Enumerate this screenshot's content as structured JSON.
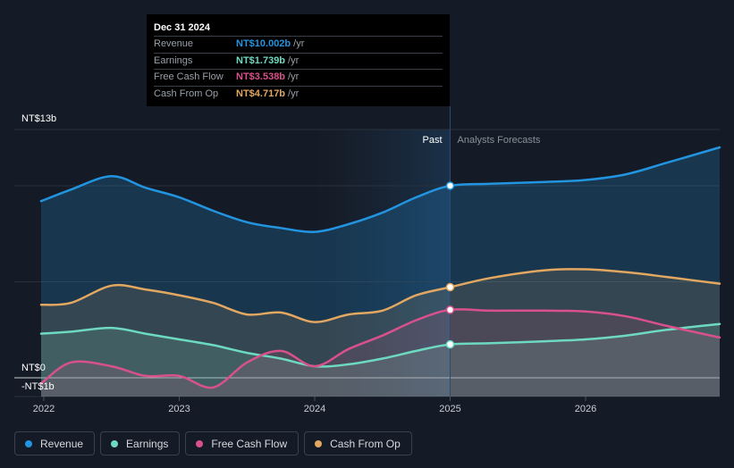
{
  "chart_data": {
    "type": "area",
    "y_axis_labels": [
      "NT$13b",
      "NT$0",
      "-NT$1b"
    ],
    "x_ticks": [
      "2022",
      "2023",
      "2024",
      "2025",
      "2026"
    ],
    "ylim": [
      -1,
      13
    ],
    "divider_label_past": "Past",
    "divider_label_forecast": "Analysts Forecasts",
    "divider_x": 2025.0,
    "series": [
      {
        "name": "Revenue",
        "color": "#2394df",
        "points": [
          [
            2021.98,
            9.2
          ],
          [
            2022.2,
            9.8
          ],
          [
            2022.5,
            10.5
          ],
          [
            2022.75,
            9.9
          ],
          [
            2023.0,
            9.4
          ],
          [
            2023.25,
            8.7
          ],
          [
            2023.5,
            8.1
          ],
          [
            2023.75,
            7.8
          ],
          [
            2024.0,
            7.6
          ],
          [
            2024.25,
            8.0
          ],
          [
            2024.5,
            8.6
          ],
          [
            2024.75,
            9.4
          ],
          [
            2025.0,
            10.0
          ],
          [
            2025.3,
            10.1
          ],
          [
            2025.7,
            10.2
          ],
          [
            2026.0,
            10.3
          ],
          [
            2026.3,
            10.6
          ],
          [
            2026.6,
            11.2
          ],
          [
            2026.99,
            12.0
          ]
        ]
      },
      {
        "name": "Earnings",
        "color": "#6ed9c1",
        "points": [
          [
            2021.98,
            2.3
          ],
          [
            2022.2,
            2.4
          ],
          [
            2022.5,
            2.6
          ],
          [
            2022.75,
            2.3
          ],
          [
            2023.0,
            2.0
          ],
          [
            2023.25,
            1.7
          ],
          [
            2023.5,
            1.3
          ],
          [
            2023.75,
            1.0
          ],
          [
            2024.0,
            0.6
          ],
          [
            2024.25,
            0.7
          ],
          [
            2024.5,
            1.0
          ],
          [
            2024.75,
            1.4
          ],
          [
            2025.0,
            1.74
          ],
          [
            2025.3,
            1.8
          ],
          [
            2025.7,
            1.9
          ],
          [
            2026.0,
            2.0
          ],
          [
            2026.3,
            2.2
          ],
          [
            2026.6,
            2.5
          ],
          [
            2026.99,
            2.8
          ]
        ]
      },
      {
        "name": "Free Cash Flow",
        "color": "#d9518c",
        "points": [
          [
            2021.98,
            -0.3
          ],
          [
            2022.2,
            0.8
          ],
          [
            2022.5,
            0.6
          ],
          [
            2022.75,
            0.1
          ],
          [
            2023.0,
            0.1
          ],
          [
            2023.25,
            -0.5
          ],
          [
            2023.5,
            0.8
          ],
          [
            2023.75,
            1.4
          ],
          [
            2024.0,
            0.6
          ],
          [
            2024.25,
            1.5
          ],
          [
            2024.5,
            2.2
          ],
          [
            2024.75,
            3.0
          ],
          [
            2025.0,
            3.54
          ],
          [
            2025.3,
            3.5
          ],
          [
            2025.7,
            3.5
          ],
          [
            2026.0,
            3.45
          ],
          [
            2026.3,
            3.2
          ],
          [
            2026.6,
            2.7
          ],
          [
            2026.99,
            2.1
          ]
        ]
      },
      {
        "name": "Cash From Op",
        "color": "#e2a760",
        "points": [
          [
            2021.98,
            3.8
          ],
          [
            2022.2,
            3.9
          ],
          [
            2022.5,
            4.8
          ],
          [
            2022.75,
            4.6
          ],
          [
            2023.0,
            4.3
          ],
          [
            2023.25,
            3.9
          ],
          [
            2023.5,
            3.3
          ],
          [
            2023.75,
            3.4
          ],
          [
            2024.0,
            2.9
          ],
          [
            2024.25,
            3.3
          ],
          [
            2024.5,
            3.5
          ],
          [
            2024.75,
            4.3
          ],
          [
            2025.0,
            4.72
          ],
          [
            2025.3,
            5.2
          ],
          [
            2025.7,
            5.6
          ],
          [
            2026.0,
            5.65
          ],
          [
            2026.3,
            5.5
          ],
          [
            2026.6,
            5.25
          ],
          [
            2026.99,
            4.9
          ]
        ]
      }
    ],
    "highlight_x": 2025.0
  },
  "tooltip": {
    "date": "Dec 31 2024",
    "rows": [
      {
        "label": "Revenue",
        "value": "NT$10.002b",
        "unit": "/yr",
        "color": "#2394df"
      },
      {
        "label": "Earnings",
        "value": "NT$1.739b",
        "unit": "/yr",
        "color": "#6ed9c1"
      },
      {
        "label": "Free Cash Flow",
        "value": "NT$3.538b",
        "unit": "/yr",
        "color": "#d9518c"
      },
      {
        "label": "Cash From Op",
        "value": "NT$4.717b",
        "unit": "/yr",
        "color": "#e2a760"
      }
    ]
  },
  "legend": [
    {
      "label": "Revenue",
      "color": "#2394df"
    },
    {
      "label": "Earnings",
      "color": "#6ed9c1"
    },
    {
      "label": "Free Cash Flow",
      "color": "#d9518c"
    },
    {
      "label": "Cash From Op",
      "color": "#e2a760"
    }
  ]
}
